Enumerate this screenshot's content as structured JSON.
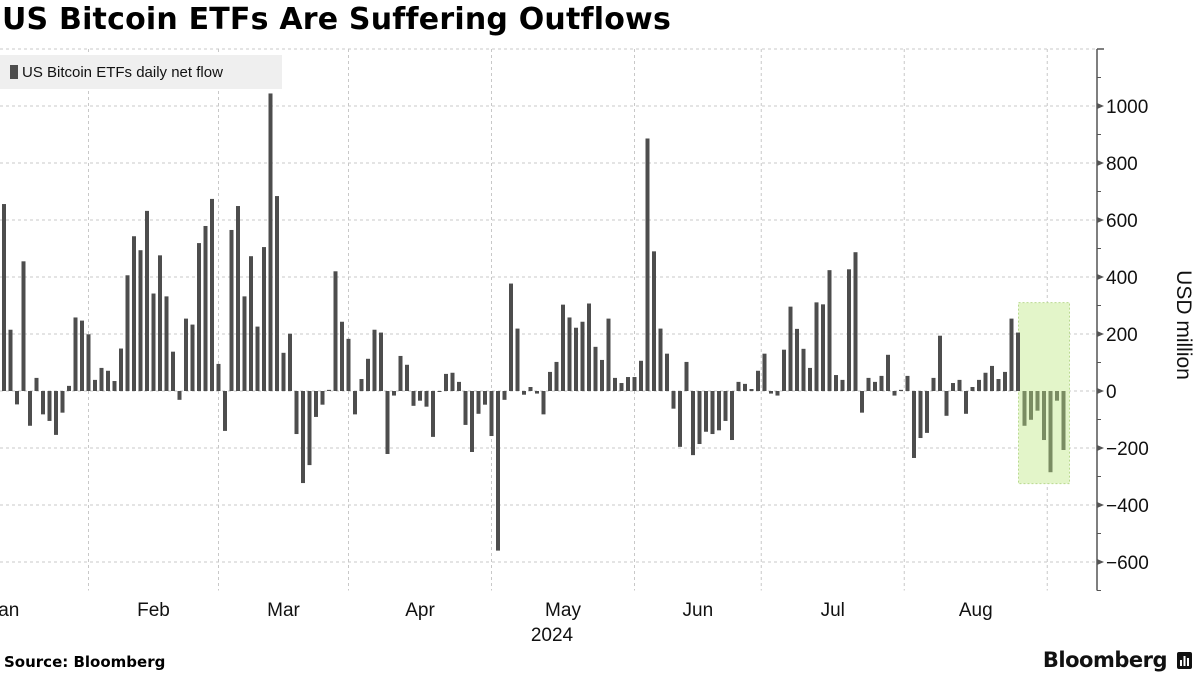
{
  "header": {
    "title": "US Bitcoin ETFs Are Suffering Outflows"
  },
  "footer": {
    "source": "Source: Bloomberg",
    "logo_text": "Bloomberg"
  },
  "chart_data": {
    "type": "bar",
    "title": "US Bitcoin ETFs Are Suffering Outflows",
    "ylabel": "USD million",
    "xlabel": "",
    "year_label": "2024",
    "ylim": [
      -700,
      1200
    ],
    "yticks": [
      -600,
      -400,
      -200,
      0,
      200,
      400,
      600,
      800,
      1000
    ],
    "grid": true,
    "legend": {
      "position": "top-left",
      "entries": [
        "US Bitcoin ETFs daily net flow"
      ]
    },
    "months": [
      {
        "label": "Jan",
        "start_index": 0
      },
      {
        "label": "Feb",
        "start_index": 13
      },
      {
        "label": "Mar",
        "start_index": 33
      },
      {
        "label": "Apr",
        "start_index": 53
      },
      {
        "label": "May",
        "start_index": 75
      },
      {
        "label": "Jun",
        "start_index": 97
      },
      {
        "label": "Jul",
        "start_index": 116.5
      },
      {
        "label": "Aug",
        "start_index": 138.5
      },
      {
        "label": "",
        "start_index": 160.5
      }
    ],
    "colors": {
      "bar": "#4d4d4d",
      "highlight_bar": "#7a8c62",
      "highlight_box": "#e3f5c9",
      "highlight_border": "#b9d98f"
    },
    "highlight": {
      "from_index": 157,
      "to_index": 163,
      "box_ylim": [
        -325,
        310
      ]
    },
    "series": [
      {
        "name": "US Bitcoin ETFs daily net flow",
        "values": [
          656,
          215,
          -47,
          455,
          -122,
          46,
          -82,
          -105,
          -154,
          -76,
          18,
          258,
          247,
          199,
          39,
          81,
          71,
          35,
          149,
          406,
          543,
          494,
          632,
          342,
          476,
          332,
          138,
          -31,
          254,
          233,
          519,
          579,
          674,
          95,
          -140,
          565,
          649,
          332,
          473,
          226,
          505,
          1044,
          684,
          134,
          201,
          -151,
          -323,
          -260,
          -91,
          -48,
          4,
          420,
          243,
          183,
          -82,
          42,
          113,
          215,
          205,
          -221,
          -16,
          123,
          92,
          -52,
          -34,
          -55,
          -161,
          -3,
          60,
          64,
          32,
          -119,
          -214,
          -80,
          -48,
          -158,
          -560,
          -31,
          377,
          219,
          -13,
          14,
          -9,
          -82,
          67,
          102,
          303,
          258,
          222,
          243,
          307,
          155,
          109,
          254,
          46,
          28,
          49,
          49,
          106,
          886,
          490,
          219,
          131,
          -62,
          -196,
          102,
          -225,
          -186,
          -143,
          -151,
          -138,
          -105,
          -172,
          32,
          25,
          7,
          71,
          131,
          -9,
          -16,
          145,
          296,
          218,
          148,
          81,
          311,
          304,
          424,
          56,
          39,
          427,
          487,
          -76,
          46,
          32,
          53,
          127,
          -16,
          4,
          53,
          -235,
          -165,
          -147,
          46,
          194,
          -87,
          28,
          39,
          -80,
          14,
          39,
          64,
          88,
          42,
          67,
          254,
          205,
          -122,
          -101,
          -69,
          -172,
          -285,
          -34,
          -207
        ]
      }
    ]
  }
}
